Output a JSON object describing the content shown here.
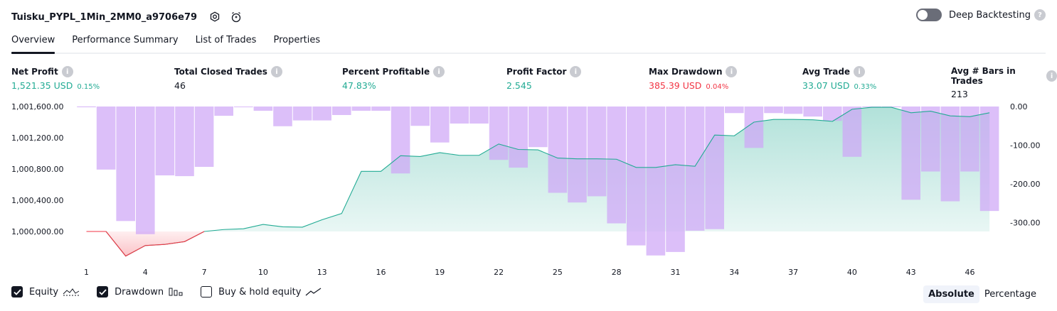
{
  "header": {
    "title": "Tuisku_PYPL_1Min_2MM0_a9706e79",
    "settings_icon": "gear-icon",
    "alert_icon": "alarm-clock-add-icon",
    "deep_backtesting_label": "Deep Backtesting",
    "deep_backtesting_on": false
  },
  "tabs": [
    {
      "label": "Overview",
      "active": true
    },
    {
      "label": "Performance Summary",
      "active": false
    },
    {
      "label": "List of Trades",
      "active": false
    },
    {
      "label": "Properties",
      "active": false
    }
  ],
  "metrics": {
    "net_profit": {
      "label": "Net Profit",
      "value": "1,521.35 USD",
      "pct": "0.15%"
    },
    "total_closed_trades": {
      "label": "Total Closed Trades",
      "value": "46"
    },
    "percent_profitable": {
      "label": "Percent Profitable",
      "value": "47.83%"
    },
    "profit_factor": {
      "label": "Profit Factor",
      "value": "2.545"
    },
    "max_drawdown": {
      "label": "Max Drawdown",
      "value": "385.39 USD",
      "pct": "0.04%"
    },
    "avg_trade": {
      "label": "Avg Trade",
      "value": "33.07 USD",
      "pct": "0.33%"
    },
    "avg_bars": {
      "label": "Avg # Bars in Trades",
      "value": "213"
    }
  },
  "colors": {
    "profit_green": "#22ab94",
    "loss_red": "#f23645",
    "drawdown_purple": "#cfa6f7",
    "equity_line": "#22ab94"
  },
  "chart_data": {
    "type": "line",
    "x": [
      1,
      2,
      3,
      4,
      5,
      6,
      7,
      8,
      9,
      10,
      11,
      12,
      13,
      14,
      15,
      16,
      17,
      18,
      19,
      20,
      21,
      22,
      23,
      24,
      25,
      26,
      27,
      28,
      29,
      30,
      31,
      32,
      33,
      34,
      35,
      36,
      37,
      38,
      39,
      40,
      41,
      42,
      43,
      44,
      45,
      46,
      47
    ],
    "x_ticks": [
      "1",
      "4",
      "7",
      "10",
      "13",
      "16",
      "19",
      "22",
      "25",
      "28",
      "31",
      "34",
      "37",
      "40",
      "43",
      "46"
    ],
    "y_ticks_left": [
      "1,001,600.00",
      "1,001,200.00",
      "1,000,800.00",
      "1,000,400.00",
      "1,000,000.00"
    ],
    "y_ticks_right": [
      "0.00",
      "-100.00",
      "-200.00",
      "-300.00"
    ],
    "ylim_left": [
      999915,
      1001620
    ],
    "ylim_right": [
      -385.39,
      0
    ],
    "series": [
      {
        "name": "Equity",
        "axis": "left",
        "values": [
          1000000,
          1000000,
          999685,
          999820,
          999835,
          999870,
          1000000,
          1000025,
          1000035,
          1000090,
          1000060,
          1000055,
          1000150,
          1000230,
          1000770,
          1000770,
          1000970,
          1000960,
          1001010,
          1000975,
          1000975,
          1001120,
          1001050,
          1001045,
          1000940,
          1000930,
          1000930,
          1000925,
          1000820,
          1000820,
          1000855,
          1000835,
          1001235,
          1001225,
          1001400,
          1001435,
          1001435,
          1001430,
          1001410,
          1001565,
          1001590,
          1001590,
          1001520,
          1001540,
          1001480,
          1001470,
          1001520
        ]
      },
      {
        "name": "Drawdown",
        "axis": "right",
        "values": [
          0,
          -163,
          -296,
          -330,
          -178,
          -180,
          -156,
          -24,
          -2,
          -11,
          -51,
          -36,
          -36,
          -22,
          -11,
          -11,
          -173,
          -50,
          -93,
          -44,
          -44,
          -138,
          -158,
          -105,
          -223,
          -248,
          -232,
          -302,
          -359,
          -385,
          -376,
          -321,
          -317,
          -17,
          -107,
          -17,
          -19,
          -26,
          -37,
          -130,
          0,
          0,
          -241,
          -168,
          -245,
          -168,
          -270
        ]
      }
    ]
  },
  "legend": [
    {
      "label": "Equity",
      "checked": true,
      "icon": "equity-line-icon"
    },
    {
      "label": "Drawdown",
      "checked": true,
      "icon": "drawdown-bars-icon"
    },
    {
      "label": "Buy & hold equity",
      "checked": false,
      "icon": "buy-hold-line-icon"
    }
  ],
  "view_modes": [
    {
      "label": "Absolute",
      "selected": true
    },
    {
      "label": "Percentage",
      "selected": false
    }
  ]
}
